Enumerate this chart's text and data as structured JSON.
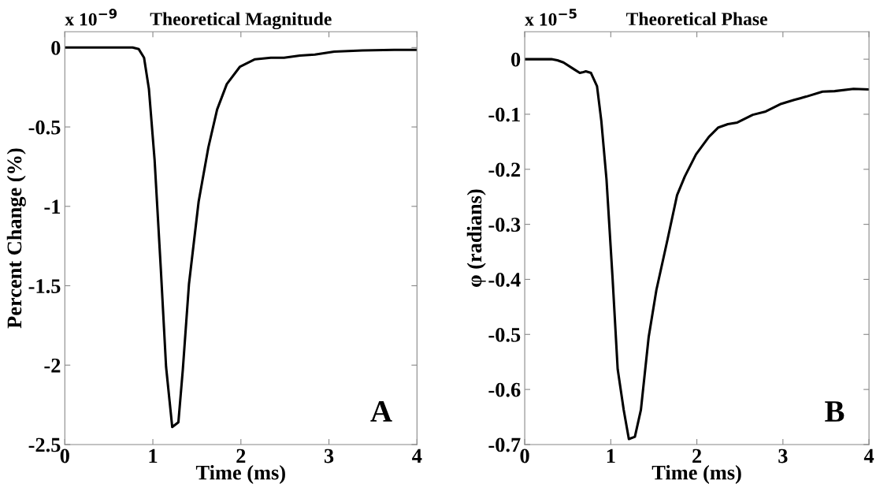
{
  "chart_data": [
    {
      "type": "line",
      "title": "Theoretical Magnitude",
      "xlabel": "Time (ms)",
      "ylabel": "Percent Change (%)",
      "xlim": [
        0,
        4
      ],
      "ylim": [
        -2.5,
        0.1
      ],
      "xticks": [
        0,
        1,
        2,
        3,
        4
      ],
      "yticks": [
        -2.5,
        -2,
        -1.5,
        -1,
        -0.5,
        0
      ],
      "grid": false,
      "annotations": [
        "x 10$^{−9}$",
        "A"
      ],
      "series": [
        {
          "color": "#000000",
          "x": [
            0,
            0.52,
            0.77,
            0.84,
            0.9,
            0.955,
            1.02,
            1.09,
            1.15,
            1.22,
            1.29,
            1.34,
            1.41,
            1.52,
            1.63,
            1.73,
            1.84,
            1.99,
            2.16,
            2.34,
            2.49,
            2.67,
            2.84,
            3.06,
            3.38,
            3.74,
            4
          ],
          "values": [
            0,
            0,
            0,
            -0.01,
            -0.064,
            -0.26,
            -0.71,
            -1.39,
            -2.01,
            -2.39,
            -2.36,
            -2.03,
            -1.49,
            -0.97,
            -0.63,
            -0.39,
            -0.23,
            -0.12,
            -0.074,
            -0.064,
            -0.064,
            -0.05,
            -0.044,
            -0.026,
            -0.018,
            -0.014,
            -0.014
          ]
        }
      ]
    },
    {
      "type": "line",
      "title": "Theoretical Phase",
      "xlabel": "Time (ms)",
      "ylabel": "φ (radians)",
      "xlim": [
        0,
        4
      ],
      "ylim": [
        -0.7,
        0.05
      ],
      "xticks": [
        0,
        1,
        2,
        3,
        4
      ],
      "yticks": [
        -0.7,
        -0.6,
        -0.5,
        -0.4,
        -0.3,
        -0.2,
        -0.1,
        0
      ],
      "grid": false,
      "annotations": [
        "x 10$^{−5}$",
        "B"
      ],
      "series": [
        {
          "color": "#000000",
          "x": [
            0,
            0.31,
            0.38,
            0.45,
            0.58,
            0.64,
            0.67,
            0.71,
            0.77,
            0.84,
            0.89,
            0.95,
            1.02,
            1.08,
            1.15,
            1.21,
            1.28,
            1.35,
            1.44,
            1.53,
            1.66,
            1.77,
            1.86,
            1.99,
            2.14,
            2.25,
            2.36,
            2.47,
            2.65,
            2.8,
            2.98,
            3.13,
            3.27,
            3.46,
            3.6,
            3.82,
            4
          ],
          "values": [
            0,
            0,
            -0.002,
            -0.006,
            -0.019,
            -0.025,
            -0.024,
            -0.022,
            -0.025,
            -0.049,
            -0.112,
            -0.218,
            -0.396,
            -0.563,
            -0.637,
            -0.69,
            -0.686,
            -0.637,
            -0.505,
            -0.419,
            -0.327,
            -0.247,
            -0.213,
            -0.173,
            -0.141,
            -0.124,
            -0.118,
            -0.115,
            -0.101,
            -0.095,
            -0.081,
            -0.074,
            -0.068,
            -0.059,
            -0.058,
            -0.054,
            -0.055
          ]
        }
      ]
    }
  ]
}
